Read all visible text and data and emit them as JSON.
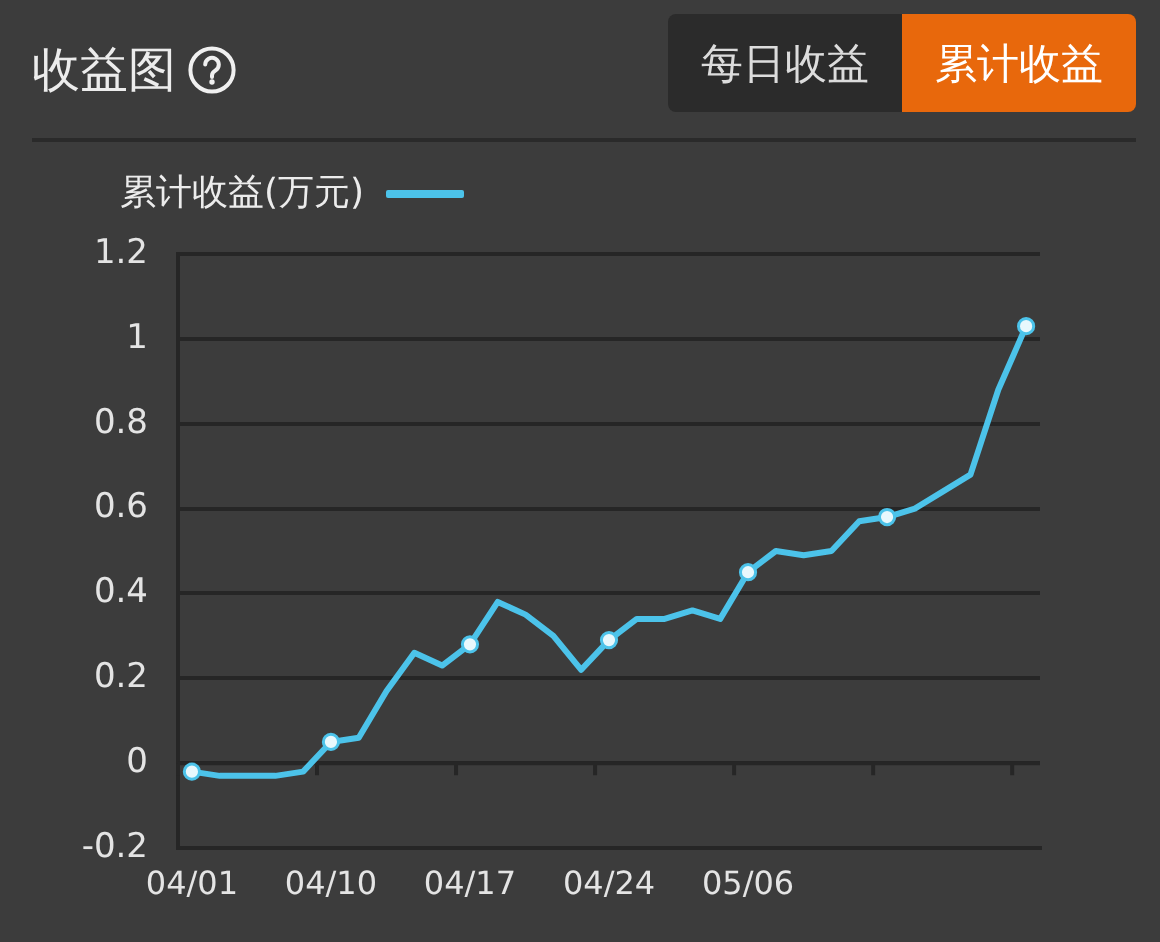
{
  "chart_data": {
    "type": "line",
    "title": "收益图",
    "annotations": [
      "每日收益",
      "累计收益"
    ],
    "categories": [
      "04/01",
      null,
      null,
      null,
      null,
      "04/10",
      null,
      null,
      null,
      null,
      "04/17",
      null,
      null,
      null,
      null,
      "04/24",
      null,
      null,
      null,
      null,
      "05/06",
      null,
      null,
      null,
      null,
      null,
      null,
      null,
      null,
      null,
      null
    ],
    "series": [
      {
        "name": "累计收益(万元)",
        "type": "line",
        "color": "#4cc3ea",
        "marker": "none",
        "values": [
          -0.02,
          -0.03,
          -0.03,
          -0.03,
          -0.02,
          0.05,
          0.06,
          0.17,
          0.26,
          0.23,
          0.28,
          0.38,
          0.35,
          0.3,
          0.22,
          0.29,
          0.34,
          0.34,
          0.36,
          0.34,
          0.45,
          0.5,
          0.49,
          0.5,
          0.57,
          0.58,
          0.6,
          0.64,
          0.68,
          0.88,
          1.03
        ]
      },
      {
        "type": "scatter",
        "color": "#e8f8fd",
        "marker": "circle",
        "values": [
          -0.02,
          null,
          null,
          null,
          null,
          0.05,
          null,
          null,
          null,
          null,
          0.28,
          null,
          null,
          null,
          null,
          0.29,
          null,
          null,
          null,
          null,
          0.45,
          null,
          null,
          null,
          null,
          0.58,
          null,
          null,
          null,
          null,
          1.03
        ]
      }
    ],
    "ylim": [
      -0.2,
      1.2
    ],
    "yticks": [
      -0.2,
      0,
      0.2,
      0.4,
      0.6,
      0.8,
      1,
      1.2
    ],
    "grid": "y",
    "legend": "top left"
  }
}
